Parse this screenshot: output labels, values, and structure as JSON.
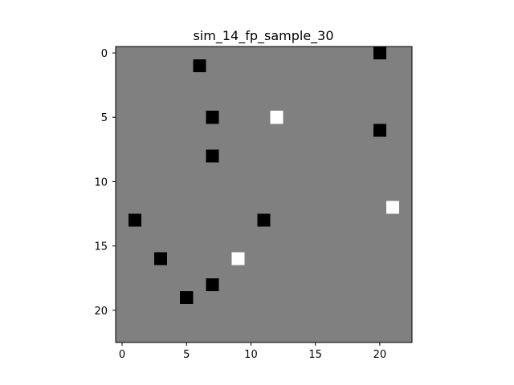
{
  "chart_data": {
    "type": "heatmap",
    "title": "sim_14_fp_sample_30",
    "xlabel": "",
    "ylabel": "",
    "grid_size": 23,
    "xlim": [
      -0.5,
      22.5
    ],
    "ylim": [
      22.5,
      -0.5
    ],
    "y_inverted": true,
    "grid": false,
    "colormap": "gray",
    "background_value": 0.5,
    "x_ticks": [
      0,
      5,
      10,
      15,
      20
    ],
    "y_ticks": [
      0,
      5,
      10,
      15,
      20
    ],
    "colors": {
      "background": "#808080",
      "low": "#000000",
      "high": "#ffffff"
    },
    "cells": [
      {
        "x": 20,
        "y": 0,
        "value": 0
      },
      {
        "x": 6,
        "y": 1,
        "value": 0
      },
      {
        "x": 7,
        "y": 5,
        "value": 0
      },
      {
        "x": 12,
        "y": 5,
        "value": 1
      },
      {
        "x": 20,
        "y": 6,
        "value": 0
      },
      {
        "x": 7,
        "y": 8,
        "value": 0
      },
      {
        "x": 21,
        "y": 12,
        "value": 1
      },
      {
        "x": 1,
        "y": 13,
        "value": 0
      },
      {
        "x": 11,
        "y": 13,
        "value": 0
      },
      {
        "x": 3,
        "y": 16,
        "value": 0
      },
      {
        "x": 9,
        "y": 16,
        "value": 1
      },
      {
        "x": 7,
        "y": 18,
        "value": 0
      },
      {
        "x": 5,
        "y": 19,
        "value": 0
      }
    ]
  }
}
